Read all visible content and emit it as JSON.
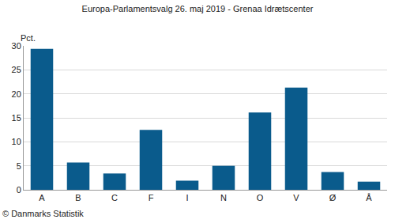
{
  "chart_data": {
    "type": "bar",
    "title": "Europa-Parlamentsvalg 26. maj 2019 - Grenaa Idrætscenter",
    "ylabel": "Pct.",
    "source": "© Danmarks Statistik",
    "categories": [
      "A",
      "B",
      "C",
      "F",
      "I",
      "N",
      "O",
      "V",
      "Ø",
      "Å"
    ],
    "values": [
      29.4,
      5.7,
      3.4,
      12.5,
      1.9,
      5.0,
      16.1,
      21.3,
      3.7,
      1.7
    ],
    "color": "#0a5b8c",
    "ylim": [
      0,
      30
    ],
    "yticks": [
      0,
      5,
      10,
      15,
      20,
      25,
      30
    ],
    "grid": true
  }
}
